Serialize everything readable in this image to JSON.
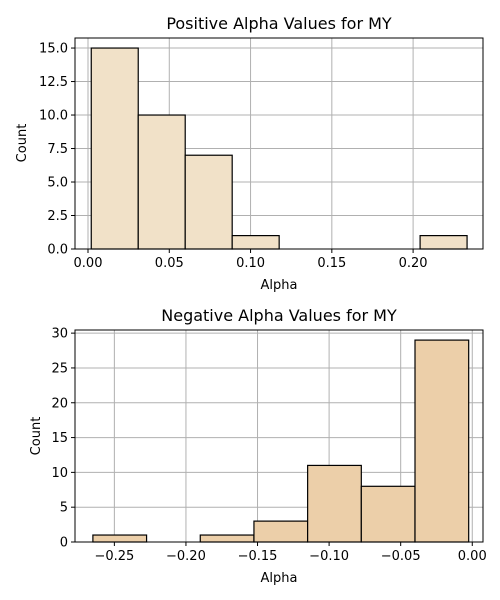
{
  "chart_data": [
    {
      "type": "bar",
      "title": "Positive Alpha Values for MY",
      "xlabel": "Alpha",
      "ylabel": "Count",
      "color": "#f1e1c8",
      "xlim": [
        -0.008,
        0.243
      ],
      "ylim": [
        0,
        15.75
      ],
      "grid": true,
      "bins": [
        {
          "start": 0.002,
          "end": 0.0309,
          "count": 15
        },
        {
          "start": 0.0309,
          "end": 0.0598,
          "count": 10
        },
        {
          "start": 0.0598,
          "end": 0.0887,
          "count": 7
        },
        {
          "start": 0.0887,
          "end": 0.1176,
          "count": 1
        },
        {
          "start": 0.1176,
          "end": 0.1465,
          "count": 0
        },
        {
          "start": 0.1465,
          "end": 0.1754,
          "count": 0
        },
        {
          "start": 0.1754,
          "end": 0.2043,
          "count": 0
        },
        {
          "start": 0.2043,
          "end": 0.2332,
          "count": 1
        }
      ],
      "xticks": [
        {
          "value": 0.0,
          "label": "0.00"
        },
        {
          "value": 0.05,
          "label": "0.05"
        },
        {
          "value": 0.1,
          "label": "0.10"
        },
        {
          "value": 0.15,
          "label": "0.15"
        },
        {
          "value": 0.2,
          "label": "0.20"
        }
      ],
      "yticks": [
        {
          "value": 0,
          "label": "0.0"
        },
        {
          "value": 2.5,
          "label": "2.5"
        },
        {
          "value": 5,
          "label": "5.0"
        },
        {
          "value": 7.5,
          "label": "7.5"
        },
        {
          "value": 10,
          "label": "10.0"
        },
        {
          "value": 12.5,
          "label": "12.5"
        },
        {
          "value": 15,
          "label": "15.0"
        }
      ]
    },
    {
      "type": "bar",
      "title": "Negative Alpha Values for MY",
      "xlabel": "Alpha",
      "ylabel": "Count",
      "color": "#eccfa9",
      "xlim": [
        -0.2775,
        0.0075
      ],
      "ylim": [
        0,
        30.45
      ],
      "grid": true,
      "bins": [
        {
          "start": -0.265,
          "end": -0.2275,
          "count": 1
        },
        {
          "start": -0.2275,
          "end": -0.19,
          "count": 0
        },
        {
          "start": -0.19,
          "end": -0.1525,
          "count": 1
        },
        {
          "start": -0.1525,
          "end": -0.115,
          "count": 3
        },
        {
          "start": -0.115,
          "end": -0.0775,
          "count": 11
        },
        {
          "start": -0.0775,
          "end": -0.04,
          "count": 8
        },
        {
          "start": -0.04,
          "end": -0.0025,
          "count": 29
        }
      ],
      "xticks": [
        {
          "value": -0.25,
          "label": "−0.25"
        },
        {
          "value": -0.2,
          "label": "−0.20"
        },
        {
          "value": -0.15,
          "label": "−0.15"
        },
        {
          "value": -0.1,
          "label": "−0.10"
        },
        {
          "value": -0.05,
          "label": "−0.05"
        },
        {
          "value": 0.0,
          "label": "0.00"
        }
      ],
      "yticks": [
        {
          "value": 0,
          "label": "0"
        },
        {
          "value": 5,
          "label": "5"
        },
        {
          "value": 10,
          "label": "10"
        },
        {
          "value": 15,
          "label": "15"
        },
        {
          "value": 20,
          "label": "20"
        },
        {
          "value": 25,
          "label": "25"
        },
        {
          "value": 30,
          "label": "30"
        }
      ]
    }
  ]
}
